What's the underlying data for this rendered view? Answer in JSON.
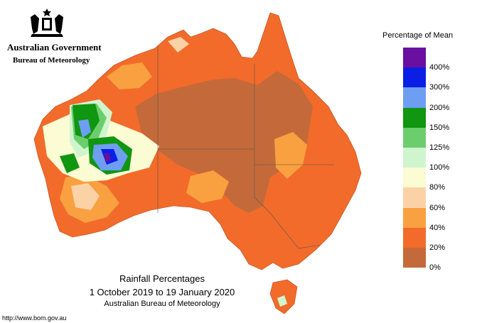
{
  "header": {
    "government": "Australian Government",
    "bureau": "Bureau of Meteorology"
  },
  "legend": {
    "title": "Percentage of Mean",
    "items": [
      {
        "label": "400%",
        "color": "#6a0fa0"
      },
      {
        "label": "300%",
        "color": "#0a1ee6"
      },
      {
        "label": "200%",
        "color": "#6e9ef2"
      },
      {
        "label": "150%",
        "color": "#109610"
      },
      {
        "label": "125%",
        "color": "#6ccd6c"
      },
      {
        "label": "100%",
        "color": "#cff5cf"
      },
      {
        "label": "80%",
        "color": "#fbfbd4"
      },
      {
        "label": "60%",
        "color": "#fbd2a6"
      },
      {
        "label": "40%",
        "color": "#f9a040"
      },
      {
        "label": "20%",
        "color": "#f26b2a"
      },
      {
        "label": "0%",
        "color": "#c46a3a"
      }
    ]
  },
  "caption": {
    "title": "Rainfall Percentages",
    "period": "1 October 2019 to 19 January 2020",
    "source": "Australian Bureau of Meteorology"
  },
  "footer": {
    "url": "http://www.bom.gov.au"
  }
}
